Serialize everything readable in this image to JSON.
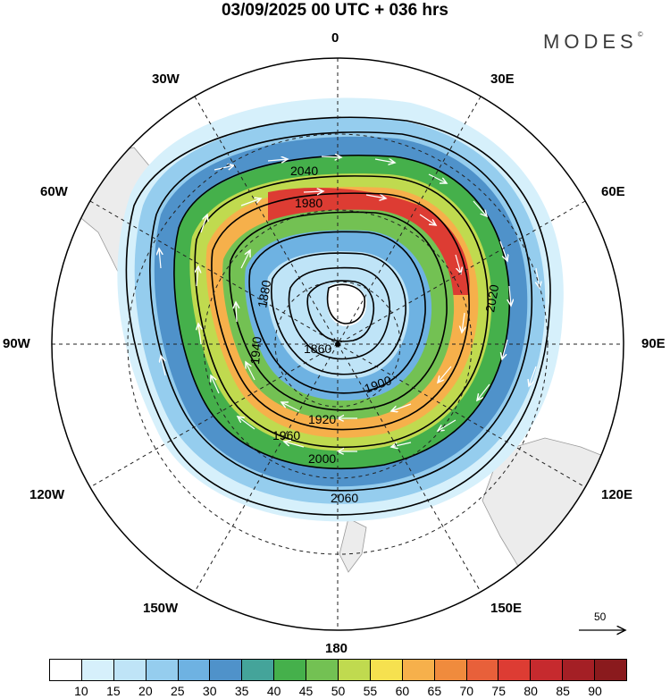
{
  "title": "03/09/2025  00 UTC  + 036 hrs",
  "brand": "MODES",
  "brand_mark": "©",
  "longitude_labels": {
    "lon_0": "0",
    "lon_30e": "30E",
    "lon_60e": "60E",
    "lon_90e": "90E",
    "lon_120e": "120E",
    "lon_150e": "150E",
    "lon_180": "180",
    "lon_150w": "150W",
    "lon_120w": "120W",
    "lon_90w": "90W",
    "lon_60w": "60W",
    "lon_30w": "30W"
  },
  "contour_labels": [
    "1860",
    "1880",
    "1900",
    "1920",
    "1940",
    "1960",
    "1980",
    "2000",
    "2020",
    "2040",
    "2060"
  ],
  "wind_reference": "50",
  "colorbar": {
    "ticks": [
      "10",
      "15",
      "20",
      "25",
      "30",
      "35",
      "40",
      "45",
      "50",
      "55",
      "60",
      "65",
      "70",
      "75",
      "80",
      "85",
      "90"
    ],
    "colors": [
      "#ffffff",
      "#d6f0fb",
      "#bfe4f7",
      "#95cdee",
      "#6eb2e2",
      "#4f92ca",
      "#44a49a",
      "#45b04b",
      "#73c153",
      "#c0da4f",
      "#f6e14f",
      "#f6b04b",
      "#f08b3d",
      "#e8603a",
      "#dd3c33",
      "#c62a2e",
      "#a41f25",
      "#8a1a1d"
    ]
  },
  "map_colors": {
    "land": "#ececec",
    "background": "#ffffff",
    "contour": "#000000",
    "grid": "#222222",
    "wind_arrows": "#ffffff"
  }
}
